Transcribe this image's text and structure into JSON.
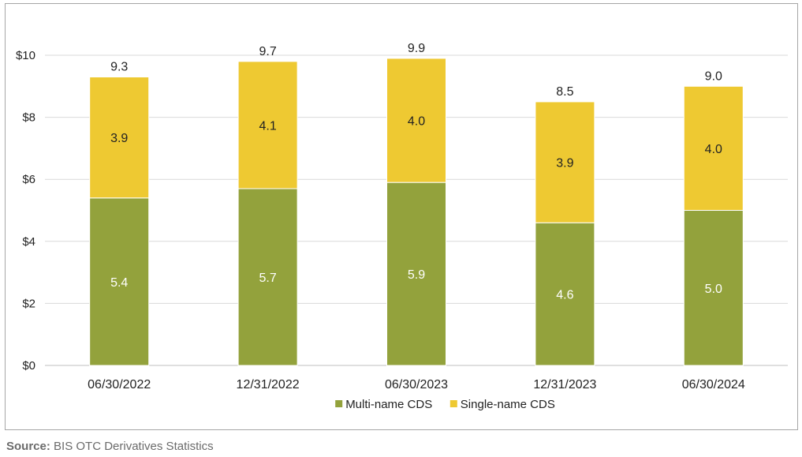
{
  "chart_data": {
    "type": "bar",
    "stacked": true,
    "categories": [
      "06/30/2022",
      "12/31/2022",
      "06/30/2023",
      "12/31/2023",
      "06/30/2024"
    ],
    "series": [
      {
        "name": "Multi-name CDS",
        "values": [
          5.4,
          5.7,
          5.9,
          4.6,
          5.0
        ],
        "color": "#93a23c",
        "label_color": "#ffffff"
      },
      {
        "name": "Single-name CDS",
        "values": [
          3.9,
          4.1,
          4.0,
          3.9,
          4.0
        ],
        "color": "#eec932",
        "label_color": "#222222"
      }
    ],
    "totals": [
      "9.3",
      "9.7",
      "9.9",
      "8.5",
      "9.0"
    ],
    "segment_labels": [
      [
        "5.4",
        "5.7",
        "5.9",
        "4.6",
        "5.0"
      ],
      [
        "3.9",
        "4.1",
        "4.0",
        "3.9",
        "4.0"
      ]
    ],
    "title": "",
    "xlabel": "",
    "ylabel": "",
    "ylim": [
      0,
      10
    ],
    "yticks": [
      0,
      2,
      4,
      6,
      8,
      10
    ],
    "ytick_labels": [
      "$0",
      "$2",
      "$4",
      "$6",
      "$8",
      "$10"
    ],
    "grid": true,
    "legend": "bottom-center"
  },
  "source": {
    "label": "Source:",
    "text": "BIS OTC Derivatives Statistics"
  }
}
